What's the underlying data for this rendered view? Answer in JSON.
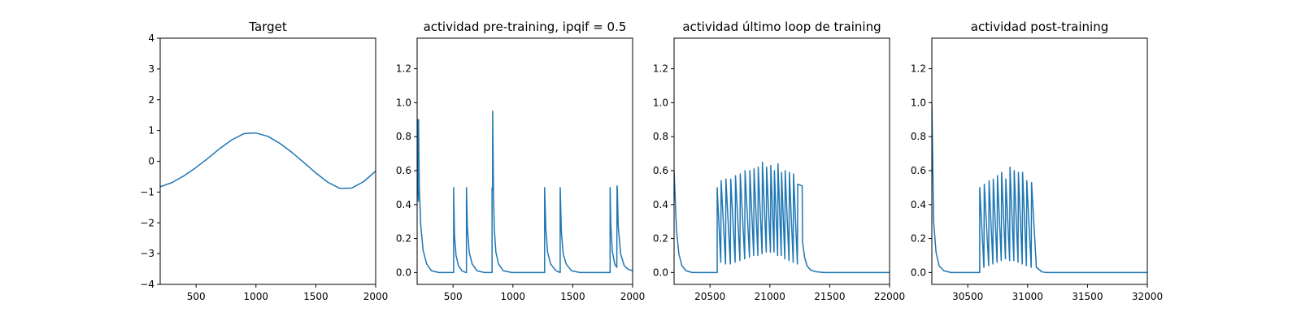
{
  "colors": {
    "series": "#1f77b4"
  },
  "chart_data": [
    {
      "type": "line",
      "title": "Target",
      "xlabel": "",
      "ylabel": "",
      "xlim": [
        200,
        2000
      ],
      "ylim": [
        -4,
        4
      ],
      "xticks": [
        500,
        1000,
        1500,
        2000
      ],
      "xticklabels": [
        "500",
        "1000",
        "1500",
        "2000"
      ],
      "yticks": [
        -4,
        -3,
        -2,
        -1,
        0,
        1,
        2,
        3,
        4
      ],
      "yticklabels": [
        "−4",
        "−3",
        "−2",
        "−1",
        "0",
        "1",
        "2",
        "3",
        "4"
      ],
      "grid": false,
      "series": [
        {
          "x": [
            200,
            300,
            400,
            500,
            600,
            700,
            800,
            900,
            1000,
            1100,
            1200,
            1300,
            1400,
            1500,
            1600,
            1700,
            1800,
            1900,
            2000
          ],
          "y": [
            -0.83,
            -0.69,
            -0.47,
            -0.2,
            0.1,
            0.42,
            0.7,
            0.9,
            0.92,
            0.81,
            0.58,
            0.29,
            -0.04,
            -0.38,
            -0.68,
            -0.88,
            -0.87,
            -0.66,
            -0.32
          ]
        }
      ]
    },
    {
      "type": "line",
      "title": "actividad pre-training, ipqif = 0.5",
      "xlabel": "",
      "ylabel": "",
      "xlim": [
        200,
        2000
      ],
      "ylim": [
        -0.07,
        1.38
      ],
      "xticks": [
        500,
        1000,
        1500,
        2000
      ],
      "xticklabels": [
        "500",
        "1000",
        "1500",
        "2000"
      ],
      "yticks": [
        0.0,
        0.2,
        0.4,
        0.6,
        0.8,
        1.0,
        1.2
      ],
      "yticklabels": [
        "0.0",
        "0.2",
        "0.4",
        "0.6",
        "0.8",
        "1.0",
        "1.2"
      ],
      "grid": false,
      "series": [
        {
          "x": [
            200,
            205,
            210,
            212,
            218,
            230,
            250,
            280,
            320,
            380,
            450,
            505,
            505,
            512,
            525,
            545,
            575,
            605,
            612,
            612,
            620,
            635,
            660,
            700,
            760,
            826,
            826,
            830,
            831,
            838,
            845,
            858,
            880,
            920,
            990,
            1080,
            1180,
            1265,
            1265,
            1275,
            1290,
            1315,
            1360,
            1395,
            1395,
            1405,
            1420,
            1445,
            1490,
            1560,
            1680,
            1785,
            1812,
            1812,
            1818,
            1830,
            1850,
            1868,
            1870,
            1872,
            1880,
            1900,
            1930,
            1960,
            2000
          ],
          "y": [
            0.45,
            0.9,
            0.42,
            0.9,
            0.5,
            0.28,
            0.13,
            0.05,
            0.01,
            0.0,
            0.0,
            0.0,
            0.5,
            0.22,
            0.1,
            0.04,
            0.01,
            0.0,
            0.0,
            0.5,
            0.26,
            0.12,
            0.05,
            0.01,
            0.0,
            0.0,
            0.5,
            0.48,
            0.95,
            0.45,
            0.25,
            0.12,
            0.05,
            0.01,
            0.0,
            0.0,
            0.0,
            0.0,
            0.5,
            0.26,
            0.12,
            0.05,
            0.01,
            0.0,
            0.5,
            0.24,
            0.11,
            0.05,
            0.01,
            0.0,
            0.0,
            0.0,
            0.0,
            0.5,
            0.28,
            0.13,
            0.05,
            0.03,
            0.51,
            0.5,
            0.27,
            0.11,
            0.04,
            0.02,
            0.01
          ]
        }
      ]
    },
    {
      "type": "line",
      "title": "actividad último loop de training",
      "xlabel": "",
      "ylabel": "",
      "xlim": [
        20200,
        22000
      ],
      "ylim": [
        -0.07,
        1.38
      ],
      "xticks": [
        20500,
        21000,
        21500,
        22000
      ],
      "xticklabels": [
        "20500",
        "21000",
        "21500",
        "22000"
      ],
      "yticks": [
        0.0,
        0.2,
        0.4,
        0.6,
        0.8,
        1.0,
        1.2
      ],
      "yticklabels": [
        "0.0",
        "0.2",
        "0.4",
        "0.6",
        "0.8",
        "1.0",
        "1.2"
      ],
      "grid": false,
      "series": [
        {
          "x": [
            20200,
            20220,
            20240,
            20265,
            20300,
            20350,
            20420,
            20500,
            20560,
            20560,
            20590,
            20593,
            20630,
            20633,
            20670,
            20673,
            20710,
            20713,
            20750,
            20753,
            20790,
            20793,
            20830,
            20833,
            20865,
            20868,
            20900,
            20903,
            20935,
            20938,
            20970,
            20973,
            21005,
            21008,
            21035,
            21038,
            21065,
            21068,
            21095,
            21098,
            21125,
            21128,
            21160,
            21163,
            21195,
            21198,
            21230,
            21233,
            21270,
            21273,
            21290,
            21310,
            21340,
            21380,
            21450,
            21550,
            21700,
            21850,
            22000
          ],
          "y": [
            0.6,
            0.25,
            0.11,
            0.04,
            0.01,
            0.0,
            0.0,
            0.0,
            0.0,
            0.5,
            0.06,
            0.54,
            0.05,
            0.55,
            0.05,
            0.55,
            0.06,
            0.57,
            0.07,
            0.58,
            0.08,
            0.6,
            0.09,
            0.6,
            0.1,
            0.61,
            0.1,
            0.62,
            0.11,
            0.65,
            0.12,
            0.62,
            0.12,
            0.63,
            0.12,
            0.6,
            0.1,
            0.64,
            0.1,
            0.59,
            0.08,
            0.6,
            0.07,
            0.59,
            0.06,
            0.58,
            0.05,
            0.52,
            0.51,
            0.18,
            0.09,
            0.04,
            0.015,
            0.005,
            0.0,
            0.0,
            0.0,
            0.0,
            0.0
          ]
        }
      ]
    },
    {
      "type": "line",
      "title": "actividad post-training",
      "xlabel": "",
      "ylabel": "",
      "xlim": [
        30200,
        32000
      ],
      "ylim": [
        -0.07,
        1.38
      ],
      "xticks": [
        30500,
        31000,
        31500,
        32000
      ],
      "xticklabels": [
        "30500",
        "31000",
        "31500",
        "32000"
      ],
      "yticks": [
        0.0,
        0.2,
        0.4,
        0.6,
        0.8,
        1.0,
        1.2
      ],
      "yticklabels": [
        "0.0",
        "0.2",
        "0.4",
        "0.6",
        "0.8",
        "1.0",
        "1.2"
      ],
      "grid": false,
      "series": [
        {
          "x": [
            30200,
            30215,
            30235,
            30260,
            30300,
            30360,
            30450,
            30600,
            30600,
            30635,
            30638,
            30675,
            30678,
            30710,
            30713,
            30745,
            30748,
            30780,
            30783,
            30815,
            30818,
            30850,
            30853,
            30885,
            30888,
            30920,
            30923,
            30955,
            30958,
            30990,
            30993,
            31030,
            31033,
            31070,
            31073,
            31110,
            31113,
            31135,
            31160,
            31200,
            31260,
            31350,
            31500,
            31700,
            32000
          ],
          "y": [
            1.0,
            0.3,
            0.12,
            0.04,
            0.01,
            0.0,
            0.0,
            0.0,
            0.5,
            0.03,
            0.52,
            0.04,
            0.54,
            0.05,
            0.55,
            0.06,
            0.57,
            0.07,
            0.59,
            0.08,
            0.55,
            0.07,
            0.62,
            0.07,
            0.6,
            0.06,
            0.59,
            0.05,
            0.59,
            0.04,
            0.54,
            0.03,
            0.53,
            0.07,
            0.03,
            0.01,
            0.005,
            0.002,
            0.0,
            0.0,
            0.0,
            0.0,
            0.0,
            0.0,
            0.0
          ]
        }
      ]
    }
  ]
}
